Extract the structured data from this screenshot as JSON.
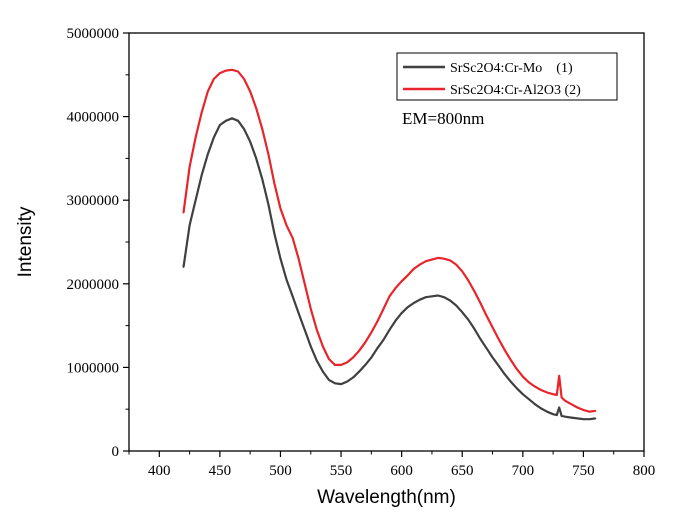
{
  "chart_data": {
    "type": "line",
    "xlabel": "Wavelength(nm)",
    "ylabel": "Intensity",
    "xlim": [
      375,
      800
    ],
    "ylim": [
      0,
      5000000
    ],
    "xticks": [
      400,
      450,
      500,
      550,
      600,
      650,
      700,
      750,
      800
    ],
    "yticks": [
      0,
      1000000,
      2000000,
      3000000,
      4000000,
      5000000
    ],
    "xtick_labels": [
      "400",
      "450",
      "500",
      "550",
      "600",
      "650",
      "700",
      "750",
      "800"
    ],
    "ytick_labels": [
      "0",
      "1000000",
      "2000000",
      "3000000",
      "4000000",
      "5000000"
    ],
    "annotation": "EM=800nm",
    "legend_position": "top-right",
    "grid": false,
    "series": [
      {
        "name": "SrSc2O4:Cr-Mo    (1)",
        "color": "#404040",
        "x": [
          420,
          425,
          430,
          435,
          440,
          445,
          450,
          455,
          460,
          465,
          470,
          475,
          480,
          485,
          490,
          495,
          500,
          505,
          510,
          515,
          520,
          525,
          530,
          535,
          540,
          545,
          550,
          555,
          560,
          565,
          570,
          575,
          580,
          585,
          590,
          595,
          600,
          605,
          610,
          615,
          620,
          625,
          630,
          635,
          640,
          645,
          650,
          655,
          660,
          665,
          670,
          675,
          680,
          685,
          690,
          695,
          700,
          705,
          710,
          715,
          720,
          725,
          728,
          730,
          732,
          735,
          740,
          745,
          750,
          755,
          760
        ],
        "y": [
          2200000,
          2700000,
          3000000,
          3300000,
          3550000,
          3750000,
          3900000,
          3950000,
          3980000,
          3950000,
          3850000,
          3700000,
          3500000,
          3250000,
          2950000,
          2600000,
          2300000,
          2050000,
          1850000,
          1650000,
          1450000,
          1250000,
          1080000,
          950000,
          850000,
          810000,
          800000,
          830000,
          880000,
          950000,
          1030000,
          1120000,
          1230000,
          1330000,
          1450000,
          1560000,
          1650000,
          1720000,
          1770000,
          1810000,
          1840000,
          1850000,
          1860000,
          1840000,
          1800000,
          1740000,
          1660000,
          1570000,
          1460000,
          1340000,
          1230000,
          1120000,
          1020000,
          920000,
          830000,
          750000,
          680000,
          620000,
          560000,
          510000,
          470000,
          440000,
          430000,
          520000,
          420000,
          410000,
          400000,
          390000,
          380000,
          380000,
          390000
        ]
      },
      {
        "name": "SrSc2O4:Cr-Al2O3 (2)",
        "color": "#e8252a",
        "x": [
          420,
          425,
          430,
          435,
          440,
          445,
          450,
          455,
          460,
          465,
          470,
          475,
          480,
          485,
          490,
          495,
          500,
          505,
          510,
          515,
          520,
          525,
          530,
          535,
          540,
          545,
          550,
          555,
          560,
          565,
          570,
          575,
          580,
          585,
          590,
          595,
          600,
          605,
          610,
          615,
          620,
          625,
          630,
          635,
          640,
          645,
          650,
          655,
          660,
          665,
          670,
          675,
          680,
          685,
          690,
          695,
          700,
          705,
          710,
          715,
          720,
          725,
          728,
          730,
          732,
          735,
          740,
          745,
          750,
          755,
          760
        ],
        "y": [
          2850000,
          3400000,
          3750000,
          4050000,
          4300000,
          4450000,
          4520000,
          4550000,
          4560000,
          4540000,
          4450000,
          4300000,
          4100000,
          3850000,
          3550000,
          3200000,
          2900000,
          2700000,
          2550000,
          2300000,
          2000000,
          1700000,
          1450000,
          1250000,
          1100000,
          1030000,
          1030000,
          1060000,
          1120000,
          1200000,
          1300000,
          1420000,
          1550000,
          1700000,
          1850000,
          1950000,
          2030000,
          2100000,
          2180000,
          2230000,
          2270000,
          2290000,
          2310000,
          2300000,
          2280000,
          2230000,
          2150000,
          2040000,
          1910000,
          1770000,
          1620000,
          1480000,
          1340000,
          1210000,
          1090000,
          980000,
          890000,
          820000,
          770000,
          730000,
          700000,
          680000,
          670000,
          900000,
          640000,
          600000,
          560000,
          520000,
          490000,
          470000,
          480000
        ]
      }
    ]
  }
}
